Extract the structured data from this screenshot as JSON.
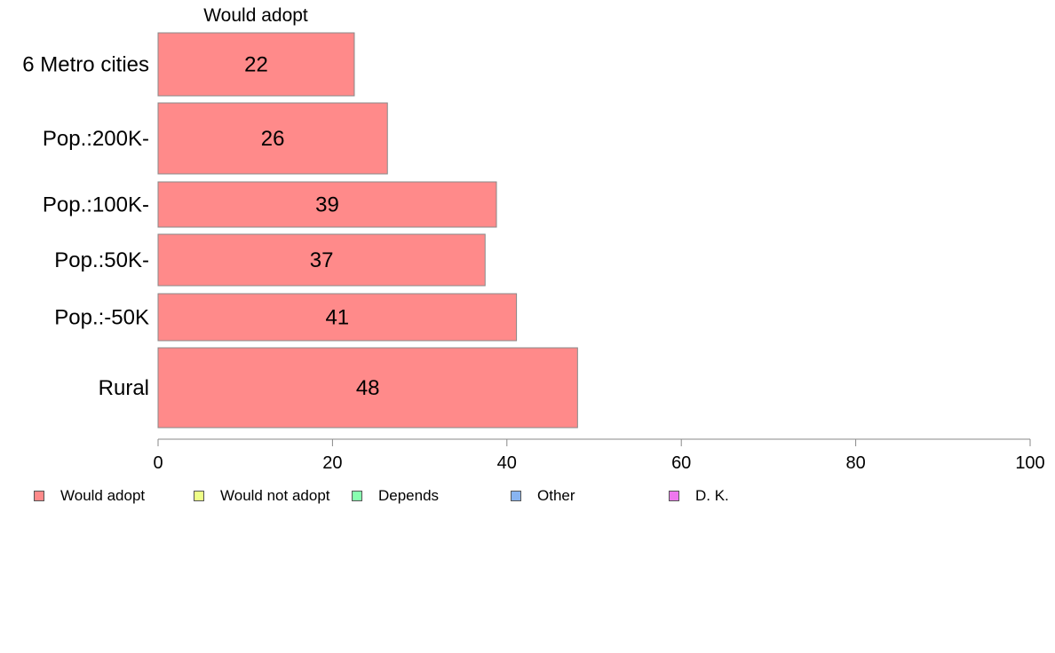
{
  "chart_data": {
    "type": "bar",
    "orientation": "horizontal",
    "title": "Would adopt",
    "xlabel": "",
    "ylabel": "",
    "xlim": [
      0,
      100
    ],
    "x_ticks": [
      0,
      20,
      40,
      60,
      80,
      100
    ],
    "grid": false,
    "categories": [
      "6 Metro cities",
      "Pop.:200K-",
      "Pop.:100K-",
      "Pop.:50K-",
      "Pop.:-50K",
      "Rural"
    ],
    "series": [
      {
        "name": "Would adopt",
        "color": "#ff8a8a",
        "values": [
          22.5,
          26.3,
          38.8,
          37.5,
          41.1,
          48.1
        ],
        "labels": [
          "22",
          "26",
          "39",
          "37",
          "41",
          "48"
        ]
      }
    ],
    "legend_placement": "bottom",
    "legend": [
      {
        "label": "Would adopt",
        "color": "#ff8a8a"
      },
      {
        "label": "Would not adopt",
        "color": "#eeff88"
      },
      {
        "label": "Depends",
        "color": "#88ffb0"
      },
      {
        "label": "Other",
        "color": "#88b4f0"
      },
      {
        "label": "D. K.",
        "color": "#ee77ee"
      }
    ]
  }
}
